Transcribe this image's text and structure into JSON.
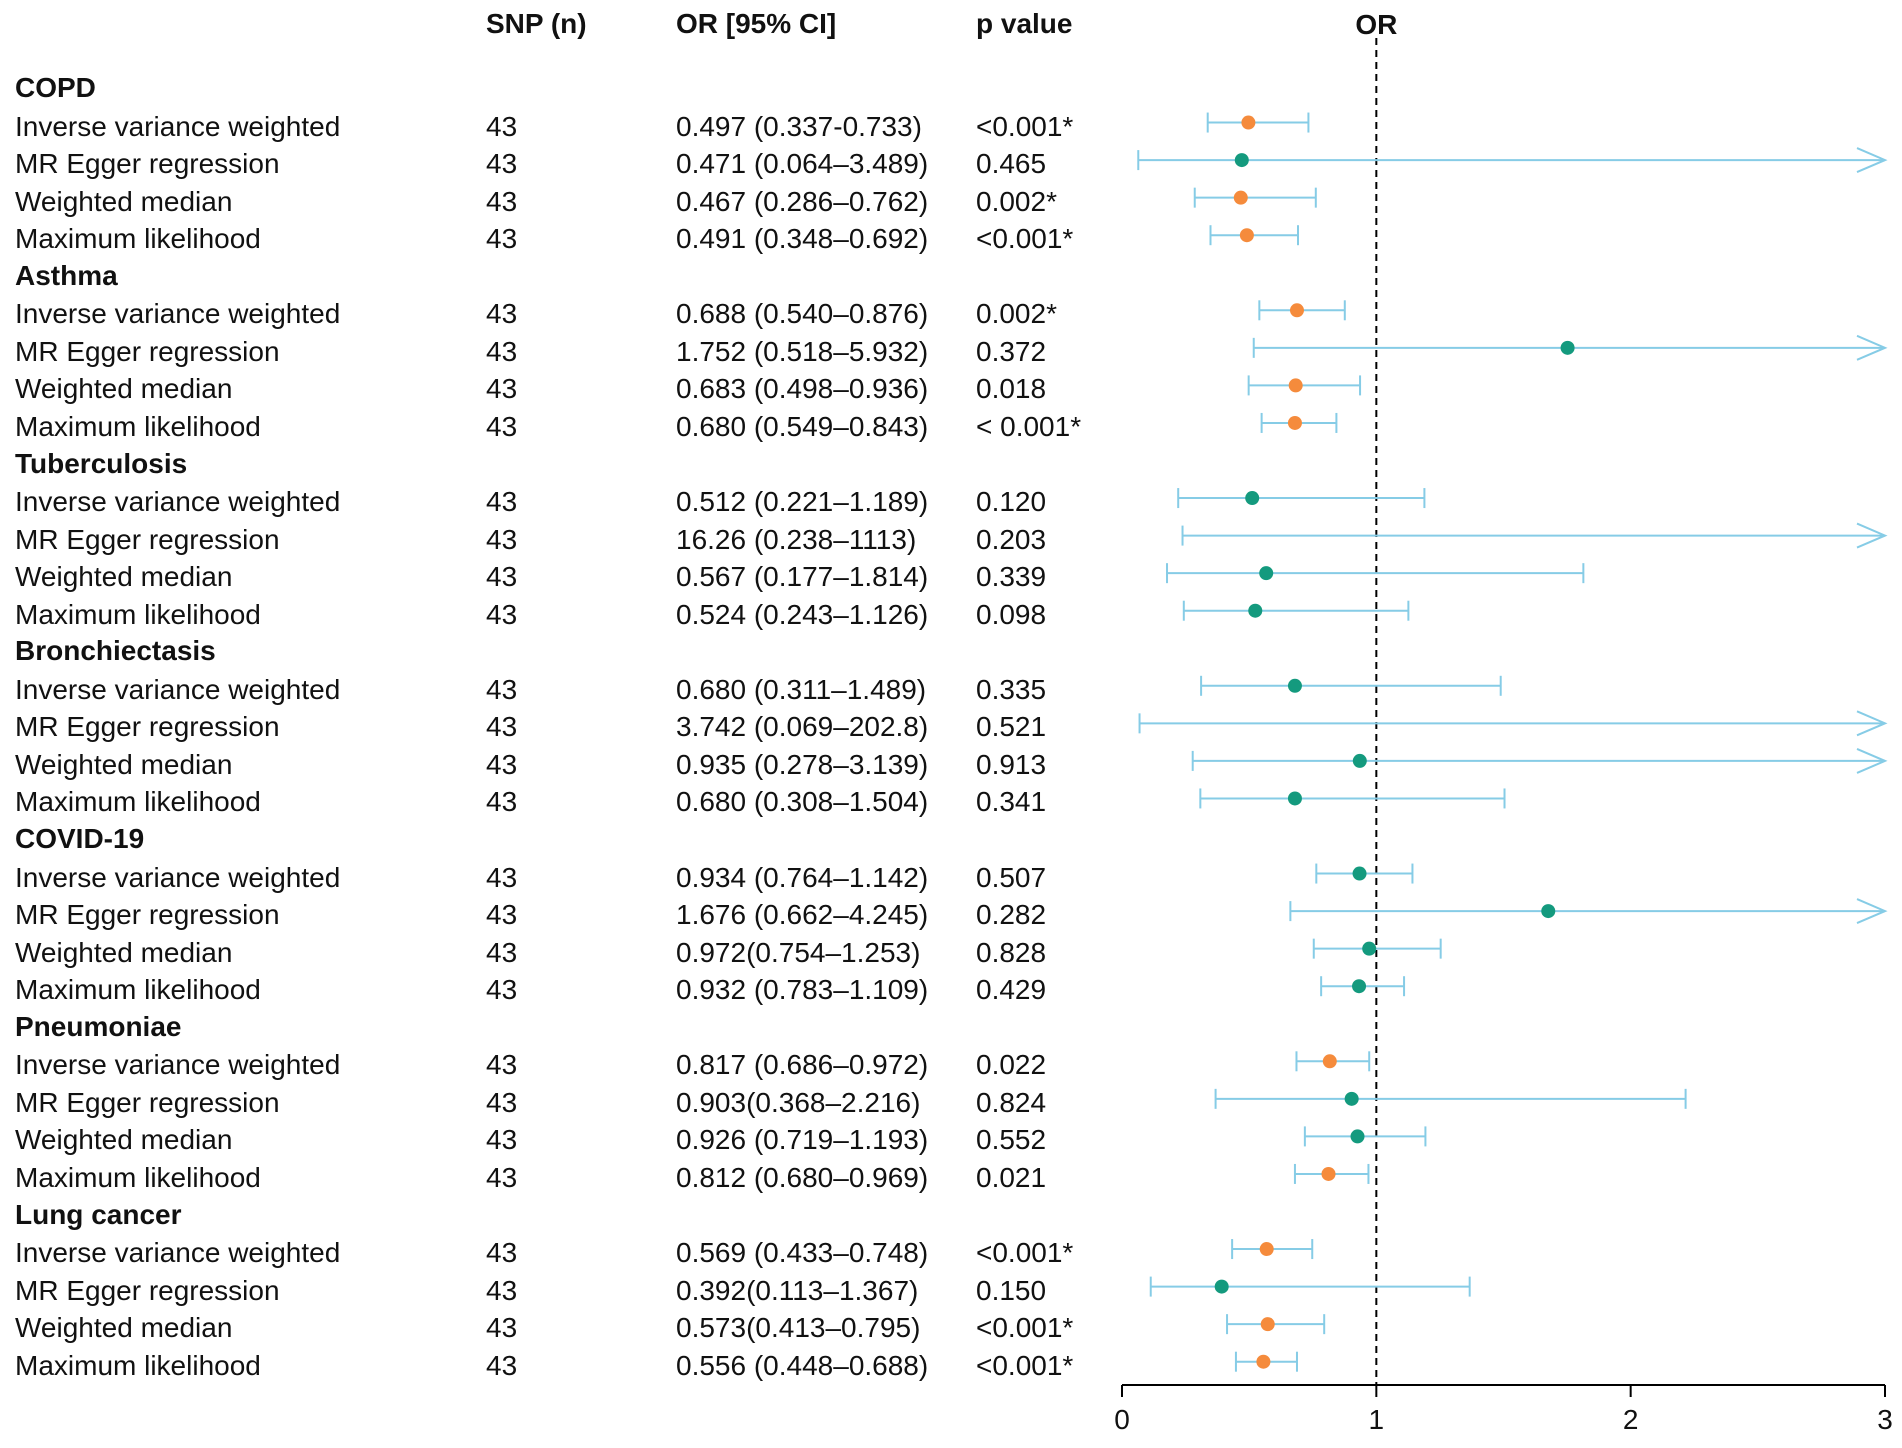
{
  "headers": {
    "snp": "SNP (n)",
    "or": "OR [95% CI]",
    "p": "p value",
    "plot": "OR"
  },
  "groups": [
    {
      "name": "COPD",
      "rows": [
        {
          "method": "Inverse variance weighted",
          "snp": "43",
          "or_text": "0.497 (0.337-0.733)",
          "p": "<0.001*"
        },
        {
          "method": "MR Egger regression",
          "snp": "43",
          "or_text": "0.471 (0.064–3.489)",
          "p": "0.465"
        },
        {
          "method": "Weighted median",
          "snp": "43",
          "or_text": "0.467 (0.286–0.762)",
          "p": "0.002*"
        },
        {
          "method": "Maximum likelihood",
          "snp": "43",
          "or_text": "0.491 (0.348–0.692)",
          "p": "<0.001*"
        }
      ]
    },
    {
      "name": "Asthma",
      "rows": [
        {
          "method": "Inverse variance weighted",
          "snp": "43",
          "or_text": "0.688 (0.540–0.876)",
          "p": "0.002*"
        },
        {
          "method": "MR Egger regression",
          "snp": "43",
          "or_text": "1.752 (0.518–5.932)",
          "p": "0.372"
        },
        {
          "method": "Weighted median",
          "snp": "43",
          "or_text": "0.683 (0.498–0.936)",
          "p": "0.018"
        },
        {
          "method": "Maximum likelihood",
          "snp": "43",
          "or_text": "0.680 (0.549–0.843)",
          "p": "< 0.001*"
        }
      ]
    },
    {
      "name": "Tuberculosis",
      "rows": [
        {
          "method": "Inverse variance weighted",
          "snp": "43",
          "or_text": "0.512 (0.221–1.189)",
          "p": "0.120"
        },
        {
          "method": "MR Egger regression",
          "snp": "43",
          "or_text": "16.26 (0.238–1113)",
          "p": "0.203"
        },
        {
          "method": "Weighted median",
          "snp": "43",
          "or_text": "0.567 (0.177–1.814)",
          "p": "0.339"
        },
        {
          "method": "Maximum likelihood",
          "snp": "43",
          "or_text": "0.524 (0.243–1.126)",
          "p": "0.098"
        }
      ]
    },
    {
      "name": "Bronchiectasis",
      "rows": [
        {
          "method": "Inverse variance weighted",
          "snp": "43",
          "or_text": "0.680 (0.311–1.489)",
          "p": "0.335"
        },
        {
          "method": "MR Egger regression",
          "snp": "43",
          "or_text": "3.742 (0.069–202.8)",
          "p": "0.521"
        },
        {
          "method": "Weighted median",
          "snp": "43",
          "or_text": "0.935 (0.278–3.139)",
          "p": "0.913"
        },
        {
          "method": "Maximum likelihood",
          "snp": "43",
          "or_text": "0.680 (0.308–1.504)",
          "p": "0.341"
        }
      ]
    },
    {
      "name": "COVID-19",
      "rows": [
        {
          "method": "Inverse variance weighted",
          "snp": "43",
          "or_text": "0.934 (0.764–1.142)",
          "p": "0.507"
        },
        {
          "method": "MR Egger regression",
          "snp": "43",
          "or_text": "1.676 (0.662–4.245)",
          "p": "0.282"
        },
        {
          "method": "Weighted median",
          "snp": "43",
          "or_text": "0.972(0.754–1.253)",
          "p": "0.828"
        },
        {
          "method": "Maximum likelihood",
          "snp": "43",
          "or_text": "0.932 (0.783–1.109)",
          "p": "0.429"
        }
      ]
    },
    {
      "name": "Pneumoniae",
      "rows": [
        {
          "method": "Inverse variance weighted",
          "snp": "43",
          "or_text": "0.817 (0.686–0.972)",
          "p": "0.022"
        },
        {
          "method": "MR Egger regression",
          "snp": "43",
          "or_text": "0.903(0.368–2.216)",
          "p": "0.824"
        },
        {
          "method": "Weighted median",
          "snp": "43",
          "or_text": "0.926 (0.719–1.193)",
          "p": "0.552"
        },
        {
          "method": "Maximum likelihood",
          "snp": "43",
          "or_text": "0.812 (0.680–0.969)",
          "p": "0.021"
        }
      ]
    },
    {
      "name": "Lung cancer",
      "rows": [
        {
          "method": "Inverse variance weighted",
          "snp": "43",
          "or_text": "0.569 (0.433–0.748)",
          "p": "<0.001*"
        },
        {
          "method": "MR Egger regression",
          "snp": "43",
          "or_text": "0.392(0.113–1.367)",
          "p": "0.150"
        },
        {
          "method": "Weighted median",
          "snp": "43",
          "or_text": "0.573(0.413–0.795)",
          "p": "<0.001*"
        },
        {
          "method": "Maximum likelihood",
          "snp": "43",
          "or_text": "0.556 (0.448–0.688)",
          "p": "<0.001*"
        }
      ]
    }
  ],
  "colors": {
    "significant": "#F58B3C",
    "nonsignificant": "#149A7E",
    "ci_line": "#86CCE6",
    "axis": "#000000",
    "ref_line": "#000000"
  },
  "chart_data": {
    "type": "forest",
    "title": "OR",
    "xlabel": "",
    "xlim": [
      0,
      3
    ],
    "xticks": [
      0,
      1,
      2,
      3
    ],
    "reference_line": 1,
    "rows": [
      {
        "group": "COPD",
        "method": "Inverse variance weighted",
        "or": 0.497,
        "lower": 0.337,
        "upper": 0.733,
        "significant": true
      },
      {
        "group": "COPD",
        "method": "MR Egger regression",
        "or": 0.471,
        "lower": 0.064,
        "upper": 3.489,
        "significant": false
      },
      {
        "group": "COPD",
        "method": "Weighted median",
        "or": 0.467,
        "lower": 0.286,
        "upper": 0.762,
        "significant": true
      },
      {
        "group": "COPD",
        "method": "Maximum likelihood",
        "or": 0.491,
        "lower": 0.348,
        "upper": 0.692,
        "significant": true
      },
      {
        "group": "Asthma",
        "method": "Inverse variance weighted",
        "or": 0.688,
        "lower": 0.54,
        "upper": 0.876,
        "significant": true
      },
      {
        "group": "Asthma",
        "method": "MR Egger regression",
        "or": 1.752,
        "lower": 0.518,
        "upper": 5.932,
        "significant": false
      },
      {
        "group": "Asthma",
        "method": "Weighted median",
        "or": 0.683,
        "lower": 0.498,
        "upper": 0.936,
        "significant": true
      },
      {
        "group": "Asthma",
        "method": "Maximum likelihood",
        "or": 0.68,
        "lower": 0.549,
        "upper": 0.843,
        "significant": true
      },
      {
        "group": "Tuberculosis",
        "method": "Inverse variance weighted",
        "or": 0.512,
        "lower": 0.221,
        "upper": 1.189,
        "significant": false
      },
      {
        "group": "Tuberculosis",
        "method": "MR Egger regression",
        "or": 16.26,
        "lower": 0.238,
        "upper": 1113,
        "significant": false
      },
      {
        "group": "Tuberculosis",
        "method": "Weighted median",
        "or": 0.567,
        "lower": 0.177,
        "upper": 1.814,
        "significant": false
      },
      {
        "group": "Tuberculosis",
        "method": "Maximum likelihood",
        "or": 0.524,
        "lower": 0.243,
        "upper": 1.126,
        "significant": false
      },
      {
        "group": "Bronchiectasis",
        "method": "Inverse variance weighted",
        "or": 0.68,
        "lower": 0.311,
        "upper": 1.489,
        "significant": false
      },
      {
        "group": "Bronchiectasis",
        "method": "MR Egger regression",
        "or": 3.742,
        "lower": 0.069,
        "upper": 202.8,
        "significant": false
      },
      {
        "group": "Bronchiectasis",
        "method": "Weighted median",
        "or": 0.935,
        "lower": 0.278,
        "upper": 3.139,
        "significant": false
      },
      {
        "group": "Bronchiectasis",
        "method": "Maximum likelihood",
        "or": 0.68,
        "lower": 0.308,
        "upper": 1.504,
        "significant": false
      },
      {
        "group": "COVID-19",
        "method": "Inverse variance weighted",
        "or": 0.934,
        "lower": 0.764,
        "upper": 1.142,
        "significant": false
      },
      {
        "group": "COVID-19",
        "method": "MR Egger regression",
        "or": 1.676,
        "lower": 0.662,
        "upper": 4.245,
        "significant": false
      },
      {
        "group": "COVID-19",
        "method": "Weighted median",
        "or": 0.972,
        "lower": 0.754,
        "upper": 1.253,
        "significant": false
      },
      {
        "group": "COVID-19",
        "method": "Maximum likelihood",
        "or": 0.932,
        "lower": 0.783,
        "upper": 1.109,
        "significant": false
      },
      {
        "group": "Pneumoniae",
        "method": "Inverse variance weighted",
        "or": 0.817,
        "lower": 0.686,
        "upper": 0.972,
        "significant": true
      },
      {
        "group": "Pneumoniae",
        "method": "MR Egger regression",
        "or": 0.903,
        "lower": 0.368,
        "upper": 2.216,
        "significant": false
      },
      {
        "group": "Pneumoniae",
        "method": "Weighted median",
        "or": 0.926,
        "lower": 0.719,
        "upper": 1.193,
        "significant": false
      },
      {
        "group": "Pneumoniae",
        "method": "Maximum likelihood",
        "or": 0.812,
        "lower": 0.68,
        "upper": 0.969,
        "significant": true
      },
      {
        "group": "Lung cancer",
        "method": "Inverse variance weighted",
        "or": 0.569,
        "lower": 0.433,
        "upper": 0.748,
        "significant": true
      },
      {
        "group": "Lung cancer",
        "method": "MR Egger regression",
        "or": 0.392,
        "lower": 0.113,
        "upper": 1.367,
        "significant": false
      },
      {
        "group": "Lung cancer",
        "method": "Weighted median",
        "or": 0.573,
        "lower": 0.413,
        "upper": 0.795,
        "significant": true
      },
      {
        "group": "Lung cancer",
        "method": "Maximum likelihood",
        "or": 0.556,
        "lower": 0.448,
        "upper": 0.688,
        "significant": true
      }
    ]
  }
}
